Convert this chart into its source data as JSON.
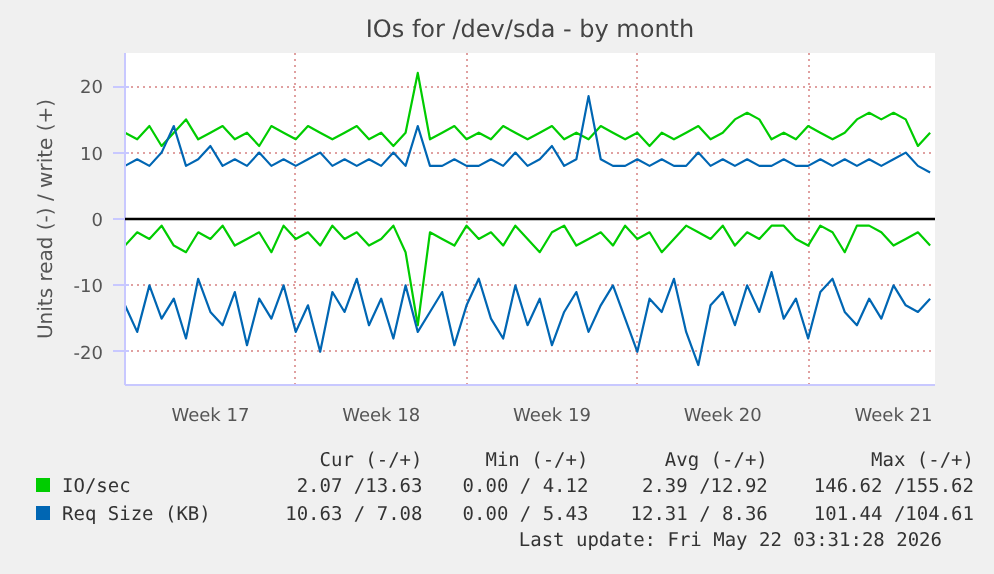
{
  "chart_data": {
    "type": "line",
    "title": "IOs for /dev/sda - by month",
    "ylabel": "Units read (-) / write (+)",
    "categories": [
      null,
      null,
      null,
      null,
      null,
      null,
      null,
      "Week 17",
      null,
      null,
      null,
      null,
      null,
      null,
      null,
      null,
      null,
      null,
      null,
      null,
      null,
      "Week 18",
      null,
      null,
      null,
      null,
      null,
      null,
      null,
      null,
      null,
      null,
      null,
      null,
      null,
      "Week 19",
      null,
      null,
      null,
      null,
      null,
      null,
      null,
      null,
      null,
      null,
      null,
      null,
      null,
      "Week 20",
      null,
      null,
      null,
      null,
      null,
      null,
      null,
      null,
      null,
      null,
      null,
      null,
      null,
      "Week 21",
      null,
      null,
      null
    ],
    "ylim": [
      -25,
      25
    ],
    "yticks": [
      -20,
      -10,
      0,
      10,
      20
    ],
    "grid": true,
    "legend": "bottom",
    "ref_lines": [
      {
        "axis": "y",
        "value": 0,
        "color": "#000000"
      }
    ],
    "series": [
      {
        "name": "IO/sec",
        "color": "#00cc00",
        "values": [
          13,
          12,
          14,
          11,
          13,
          15,
          12,
          13,
          14,
          12,
          13,
          11,
          14,
          13,
          12,
          14,
          13,
          12,
          13,
          14,
          12,
          13,
          11,
          13,
          22,
          12,
          13,
          14,
          12,
          13,
          12,
          14,
          13,
          12,
          13,
          14,
          12,
          13,
          12,
          14,
          13,
          12,
          13,
          11,
          13,
          12,
          13,
          14,
          12,
          13,
          15,
          16,
          15,
          12,
          13,
          12,
          14,
          13,
          12,
          13,
          15,
          16,
          15,
          16,
          15,
          11,
          13
        ]
      },
      {
        "color": "#00cc00",
        "values": [
          -4,
          -2,
          -3,
          -1,
          -4,
          -5,
          -2,
          -3,
          -1,
          -4,
          -3,
          -2,
          -5,
          -1,
          -3,
          -2,
          -4,
          -1,
          -3,
          -2,
          -4,
          -3,
          -1,
          -5,
          -16,
          -2,
          -3,
          -4,
          -1,
          -3,
          -2,
          -4,
          -1,
          -3,
          -5,
          -2,
          -1,
          -4,
          -3,
          -2,
          -4,
          -1,
          -3,
          -2,
          -5,
          -3,
          -1,
          -2,
          -3,
          -1,
          -4,
          -2,
          -3,
          -1,
          -1,
          -3,
          -4,
          -1,
          -2,
          -5,
          -1,
          -1,
          -2,
          -4,
          -3,
          -2,
          -4
        ]
      },
      {
        "name": "Req Size (KB)",
        "color": "#0066b3",
        "values": [
          8,
          9,
          8,
          10,
          14,
          8,
          9,
          11,
          8,
          9,
          8,
          10,
          8,
          9,
          8,
          9,
          10,
          8,
          9,
          8,
          9,
          8,
          10,
          8,
          14,
          8,
          8,
          9,
          8,
          8,
          9,
          8,
          10,
          8,
          9,
          11,
          8,
          9,
          18.5,
          9,
          8,
          8,
          9,
          8,
          9,
          8,
          8,
          10,
          8,
          9,
          8,
          9,
          8,
          8,
          9,
          8,
          8,
          9,
          8,
          9,
          8,
          9,
          8,
          9,
          10,
          8,
          7
        ]
      },
      {
        "color": "#0066b3",
        "values": [
          -13,
          -17,
          -10,
          -15,
          -12,
          -18,
          -9,
          -14,
          -16,
          -11,
          -19,
          -12,
          -15,
          -10,
          -17,
          -13,
          -20,
          -11,
          -14,
          -9,
          -16,
          -12,
          -18,
          -10,
          -17,
          -14,
          -11,
          -19,
          -13,
          -9,
          -15,
          -18,
          -10,
          -16,
          -12,
          -19,
          -14,
          -11,
          -17,
          -13,
          -10,
          -15,
          -20,
          -12,
          -14,
          -9,
          -17,
          -22,
          -13,
          -11,
          -16,
          -10,
          -14,
          -8,
          -15,
          -12,
          -18,
          -11,
          -9,
          -14,
          -16,
          -12,
          -15,
          -10,
          -13,
          -14,
          -12
        ]
      }
    ],
    "annotations": [
      "Cur (-/+)",
      "Min (-/+)",
      "Avg (-/+)",
      "Max (-/+)",
      "2.07 /13.63",
      "0.00 / 4.12",
      "2.39 /12.92",
      "146.62 /155.62",
      "10.63 / 7.08",
      "0.00 / 5.43",
      "12.31 / 8.36",
      "101.44 /104.61",
      "Last update: Fri May 22 03:31:28 2026"
    ]
  }
}
